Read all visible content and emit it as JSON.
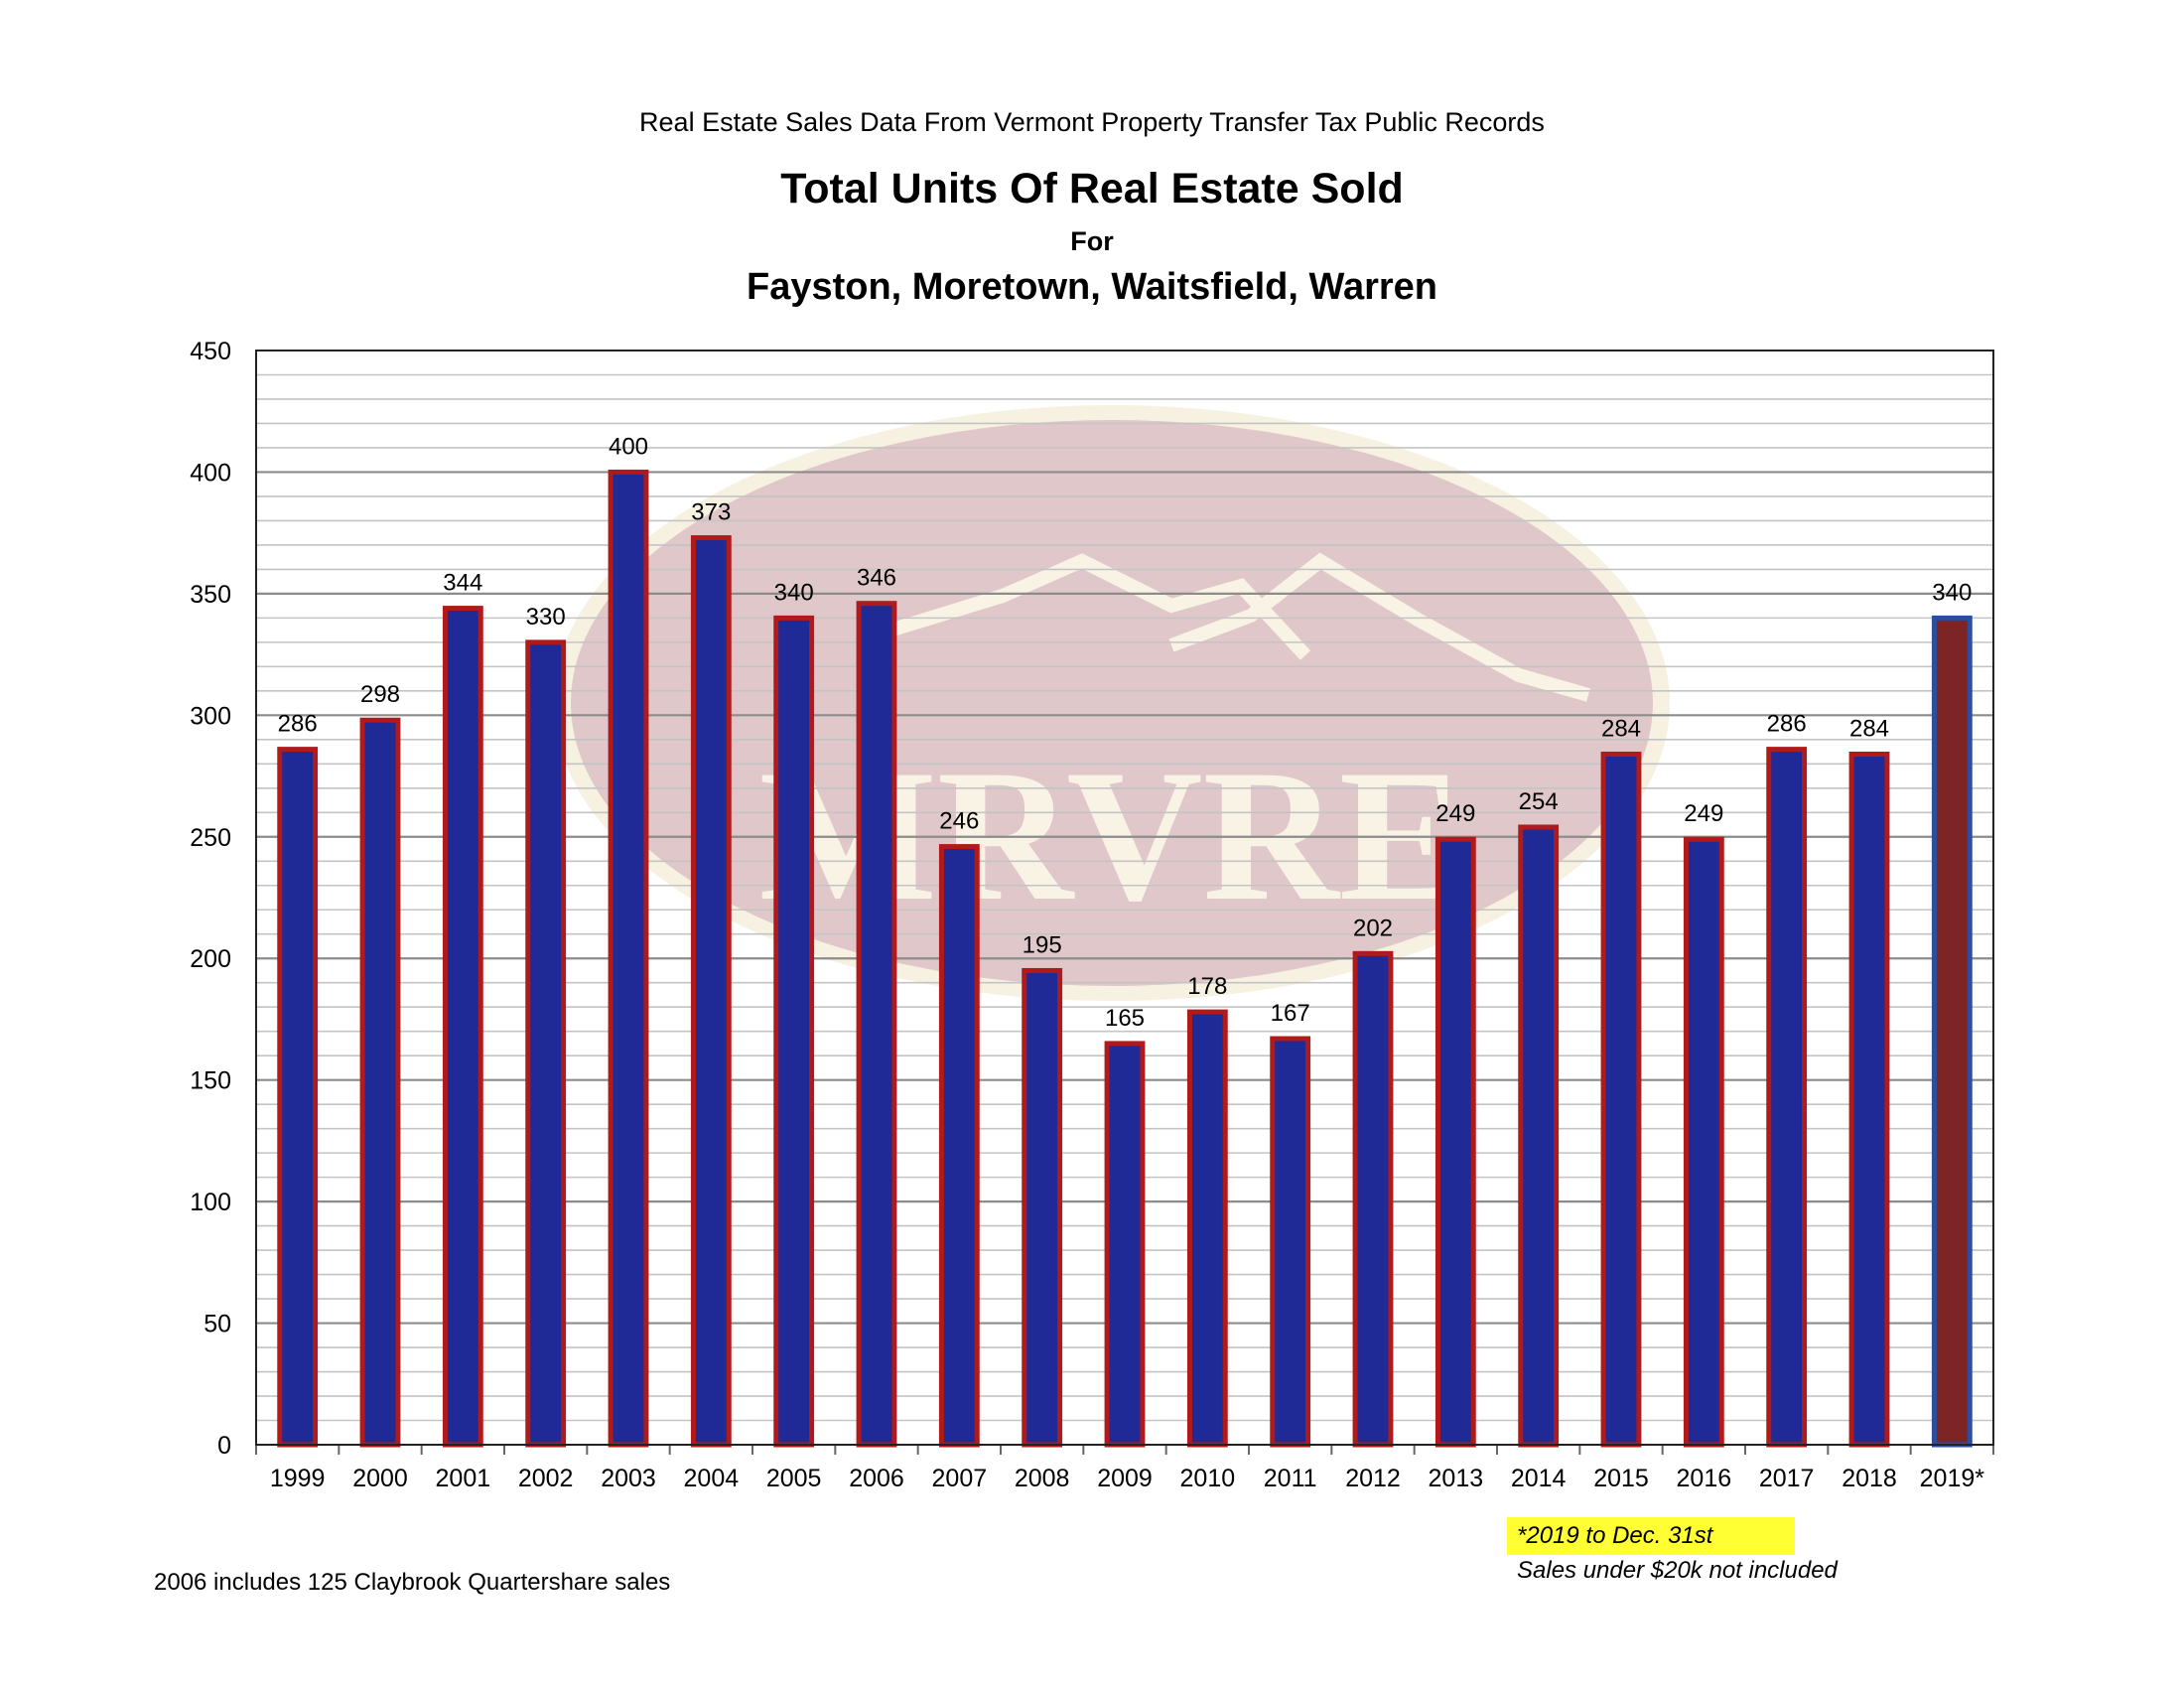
{
  "source_line": "Real Estate Sales Data From Vermont Property Transfer Tax Public Records",
  "title": "Total Units Of Real Estate Sold",
  "title_for": "For",
  "subtitle": "Fayston, Moretown, Waitsfield, Warren",
  "watermark_text": "MRVRE",
  "footnotes": {
    "left": "2006 includes 125 Claybrook Quartershare sales",
    "highlight": "*2019 to Dec. 31st",
    "sales": "Sales under $20k not included"
  },
  "colors": {
    "bar_fill": "#1f2a96",
    "bar_outline": "#b01a1a",
    "highlight_bar_fill": "#7d2424",
    "highlight_bar_outline": "#2b4f9e",
    "watermark_oval": "#c89aa0",
    "watermark_rim": "#efe6c8",
    "watermark_text": "#f3ead0",
    "highlight_background": "#ffff33"
  },
  "chart_data": {
    "type": "bar",
    "categories": [
      "1999",
      "2000",
      "2001",
      "2002",
      "2003",
      "2004",
      "2005",
      "2006",
      "2007",
      "2008",
      "2009",
      "2010",
      "2011",
      "2012",
      "2013",
      "2014",
      "2015",
      "2016",
      "2017",
      "2018",
      "2019*"
    ],
    "values": [
      286,
      298,
      344,
      330,
      400,
      373,
      340,
      346,
      246,
      195,
      165,
      178,
      167,
      202,
      249,
      254,
      284,
      249,
      286,
      284,
      340
    ],
    "data_labels": [
      "286",
      "298",
      "344",
      "330",
      "400",
      "373",
      "340",
      "346",
      "246",
      "195",
      "165",
      "178",
      "167",
      "202",
      "249",
      "254",
      "284",
      "249",
      "286",
      "284",
      "340"
    ],
    "y_ticks": [
      "0",
      "50",
      "100",
      "150",
      "200",
      "250",
      "300",
      "350",
      "400",
      "450"
    ],
    "ylim": [
      0,
      450
    ],
    "minor_gridline_step": 10,
    "major_gridline_step": 50,
    "grid": true,
    "legend": "none",
    "highlighted_category": "2019*"
  }
}
